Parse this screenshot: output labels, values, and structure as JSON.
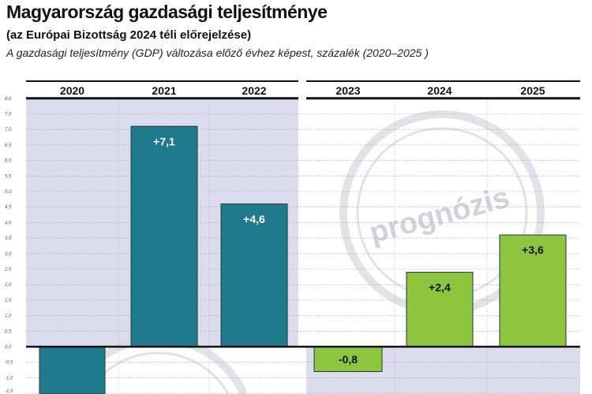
{
  "title": "Magyarország gazdasági teljesítménye",
  "subtitle": "(az Európai Bizottság 2024 téli előrejelzése)",
  "description": "A gazdasági teljesítmény (GDP) változása előző évhez képest, százalék (2020–2025 )",
  "watermark": "prognózis",
  "chart_data": {
    "type": "bar",
    "categories": [
      "2020",
      "2021",
      "2022",
      "2023",
      "2024",
      "2025"
    ],
    "values": [
      null,
      7.1,
      4.6,
      -0.8,
      2.4,
      3.6
    ],
    "value_labels": [
      "",
      "+7,1",
      "+4,6",
      "-0,8",
      "+2,4",
      "+3,6"
    ],
    "groups": [
      {
        "categories": [
          "2020",
          "2021",
          "2022"
        ],
        "color": "#1f7a8c"
      },
      {
        "categories": [
          "2023",
          "2024",
          "2025"
        ],
        "color": "#8cc63f"
      }
    ],
    "yticks": [
      "8,0",
      "7,5",
      "7,0",
      "6,5",
      "6,0",
      "5,5",
      "5,0",
      "4,5",
      "4,0",
      "3,5",
      "3,0",
      "2,5",
      "2,0",
      "1,5",
      "1,0",
      "0,5",
      "0,0",
      "-0,5",
      "-1,0",
      "-1,5"
    ],
    "ylim": [
      -1.5,
      8.0
    ],
    "grid": true,
    "xlabel": "",
    "ylabel": ""
  }
}
